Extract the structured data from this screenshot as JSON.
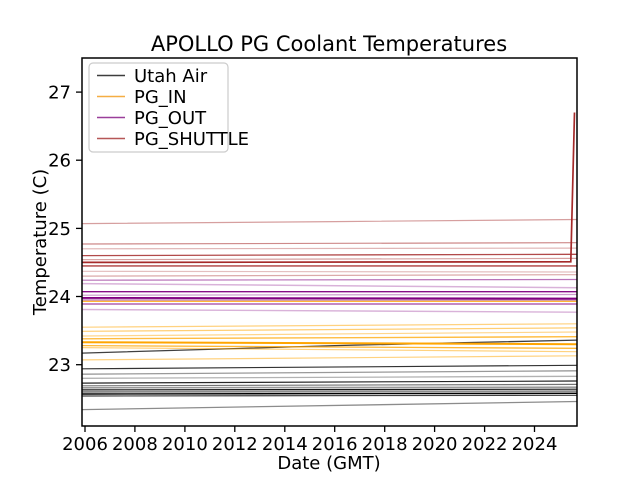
{
  "chart_data": {
    "type": "line",
    "title": "APOLLO PG Coolant Temperatures",
    "xlabel": "Date (GMT)",
    "ylabel": "Temperature (C)",
    "xlim": [
      2005.88,
      2025.7
    ],
    "ylim": [
      22.1,
      27.5
    ],
    "xticks": [
      2006,
      2008,
      2010,
      2012,
      2014,
      2016,
      2018,
      2020,
      2022,
      2024
    ],
    "xtick_labels": [
      "2006",
      "2008",
      "2010",
      "2012",
      "2014",
      "2016",
      "2018",
      "2020",
      "2022",
      "2024"
    ],
    "yticks": [
      23,
      24,
      25,
      26,
      27
    ],
    "ytick_labels": [
      "23",
      "24",
      "25",
      "26",
      "27"
    ],
    "grid": false,
    "legend_position": "upper-left",
    "legend": [
      {
        "label": "Utah Air",
        "color": "#3d3d3d"
      },
      {
        "label": "PG_IN",
        "color": "#f5ae43"
      },
      {
        "label": "PG_OUT",
        "color": "#9a3f9a"
      },
      {
        "label": "PG_SHUTTLE",
        "color": "#b65757"
      }
    ],
    "series": [
      {
        "name": "Utah Air",
        "color": "#000000",
        "lines": [
          {
            "points": [
              [
                2005.88,
                23.17
              ],
              [
                2016,
                23.28
              ],
              [
                2025.7,
                23.36
              ]
            ],
            "width": 1.3,
            "opacity": 0.75
          },
          {
            "points": [
              [
                2005.88,
                22.94
              ],
              [
                2025.7,
                22.99
              ]
            ],
            "width": 1.2,
            "opacity": 0.8
          },
          {
            "points": [
              [
                2005.88,
                22.86
              ],
              [
                2025.7,
                22.91
              ]
            ],
            "width": 1.3,
            "opacity": 0.4
          },
          {
            "points": [
              [
                2005.88,
                22.8
              ],
              [
                2025.7,
                22.83
              ]
            ],
            "width": 1.3,
            "opacity": 0.3
          },
          {
            "points": [
              [
                2005.88,
                22.73
              ],
              [
                2025.7,
                22.76
              ]
            ],
            "width": 1.2,
            "opacity": 0.85
          },
          {
            "points": [
              [
                2005.88,
                22.69
              ],
              [
                2025.7,
                22.71
              ]
            ],
            "width": 1.2,
            "opacity": 0.55
          },
          {
            "points": [
              [
                2005.88,
                22.66
              ],
              [
                2025.7,
                22.67
              ]
            ],
            "width": 1.6,
            "opacity": 0.4
          },
          {
            "points": [
              [
                2005.88,
                22.63
              ],
              [
                2025.7,
                22.64
              ]
            ],
            "width": 1.2,
            "opacity": 0.9
          },
          {
            "points": [
              [
                2005.88,
                22.6
              ],
              [
                2025.7,
                22.61
              ]
            ],
            "width": 1.9,
            "opacity": 0.45
          },
          {
            "points": [
              [
                2005.88,
                22.57
              ],
              [
                2025.7,
                22.58
              ]
            ],
            "width": 1.4,
            "opacity": 1.0
          },
          {
            "points": [
              [
                2005.88,
                22.54
              ],
              [
                2025.7,
                22.55
              ]
            ],
            "width": 1.2,
            "opacity": 0.75
          },
          {
            "points": [
              [
                2005.88,
                22.34
              ],
              [
                2025.7,
                22.46
              ]
            ],
            "width": 1.3,
            "opacity": 0.45
          }
        ]
      },
      {
        "name": "PG_IN",
        "color": "#ffa500",
        "lines": [
          {
            "points": [
              [
                2005.88,
                23.93
              ],
              [
                2025.7,
                23.93
              ]
            ],
            "width": 1.2,
            "opacity": 0.9
          },
          {
            "points": [
              [
                2005.88,
                23.55
              ],
              [
                2025.7,
                23.6
              ]
            ],
            "width": 1.2,
            "opacity": 0.5
          },
          {
            "points": [
              [
                2005.88,
                23.49
              ],
              [
                2025.7,
                23.54
              ]
            ],
            "width": 1.2,
            "opacity": 0.55
          },
          {
            "points": [
              [
                2005.88,
                23.42
              ],
              [
                2025.7,
                23.48
              ]
            ],
            "width": 1.2,
            "opacity": 0.45
          },
          {
            "points": [
              [
                2005.88,
                23.38
              ],
              [
                2025.7,
                23.41
              ]
            ],
            "width": 1.4,
            "opacity": 0.75
          },
          {
            "points": [
              [
                2005.88,
                23.33
              ],
              [
                2025.7,
                23.3
              ]
            ],
            "width": 2.0,
            "opacity": 1.0
          },
          {
            "points": [
              [
                2005.88,
                23.28
              ],
              [
                2025.7,
                23.24
              ]
            ],
            "width": 1.3,
            "opacity": 0.8
          },
          {
            "points": [
              [
                2005.88,
                23.25
              ],
              [
                2025.7,
                23.19
              ]
            ],
            "width": 1.2,
            "opacity": 0.5
          },
          {
            "points": [
              [
                2005.88,
                23.07
              ],
              [
                2025.7,
                23.13
              ]
            ],
            "width": 1.2,
            "opacity": 0.5
          }
        ]
      },
      {
        "name": "PG_OUT",
        "color": "#800080",
        "lines": [
          {
            "points": [
              [
                2005.88,
                24.24
              ],
              [
                2025.7,
                24.25
              ]
            ],
            "width": 1.2,
            "opacity": 0.55
          },
          {
            "points": [
              [
                2005.88,
                24.19
              ],
              [
                2025.7,
                24.13
              ]
            ],
            "width": 1.5,
            "opacity": 0.3
          },
          {
            "points": [
              [
                2005.88,
                24.07
              ],
              [
                2025.7,
                24.07
              ]
            ],
            "width": 1.4,
            "opacity": 0.95
          },
          {
            "points": [
              [
                2005.88,
                24.02
              ],
              [
                2025.7,
                24.03
              ]
            ],
            "width": 1.2,
            "opacity": 0.4
          },
          {
            "points": [
              [
                2005.88,
                23.98
              ],
              [
                2025.7,
                23.97
              ]
            ],
            "width": 1.9,
            "opacity": 1.0
          },
          {
            "points": [
              [
                2005.88,
                23.95
              ],
              [
                2025.7,
                23.95
              ]
            ],
            "width": 1.1,
            "opacity": 0.6
          },
          {
            "points": [
              [
                2005.88,
                23.89
              ],
              [
                2025.7,
                23.89
              ]
            ],
            "width": 1.2,
            "opacity": 0.75
          },
          {
            "points": [
              [
                2005.88,
                23.81
              ],
              [
                2025.7,
                23.77
              ]
            ],
            "width": 1.4,
            "opacity": 0.3
          }
        ]
      },
      {
        "name": "PG_SHUTTLE",
        "color": "#a52a2a",
        "lines": [
          {
            "points": [
              [
                2005.88,
                25.07
              ],
              [
                2016,
                25.1
              ],
              [
                2025.7,
                25.13
              ]
            ],
            "width": 1.2,
            "opacity": 0.45
          },
          {
            "points": [
              [
                2005.88,
                24.77
              ],
              [
                2025.7,
                24.79
              ]
            ],
            "width": 1.2,
            "opacity": 0.55
          },
          {
            "points": [
              [
                2005.88,
                24.7
              ],
              [
                2025.7,
                24.71
              ]
            ],
            "width": 1.2,
            "opacity": 0.35
          },
          {
            "points": [
              [
                2005.88,
                24.6
              ],
              [
                2025.7,
                24.62
              ]
            ],
            "width": 1.3,
            "opacity": 0.85
          },
          {
            "points": [
              [
                2005.88,
                24.54
              ],
              [
                2025.7,
                24.56
              ]
            ],
            "width": 1.2,
            "opacity": 0.45
          },
          {
            "points": [
              [
                2005.88,
                24.5
              ],
              [
                2025.45,
                24.51
              ],
              [
                2025.6,
                26.7
              ]
            ],
            "width": 1.7,
            "opacity": 1.0
          },
          {
            "points": [
              [
                2005.88,
                24.45
              ],
              [
                2025.7,
                24.45
              ]
            ],
            "width": 1.4,
            "opacity": 0.9
          },
          {
            "points": [
              [
                2005.88,
                24.37
              ],
              [
                2025.7,
                24.36
              ]
            ],
            "width": 1.2,
            "opacity": 0.3
          },
          {
            "points": [
              [
                2005.88,
                24.3
              ],
              [
                2025.7,
                24.32
              ]
            ],
            "width": 1.2,
            "opacity": 0.4
          }
        ]
      }
    ]
  }
}
